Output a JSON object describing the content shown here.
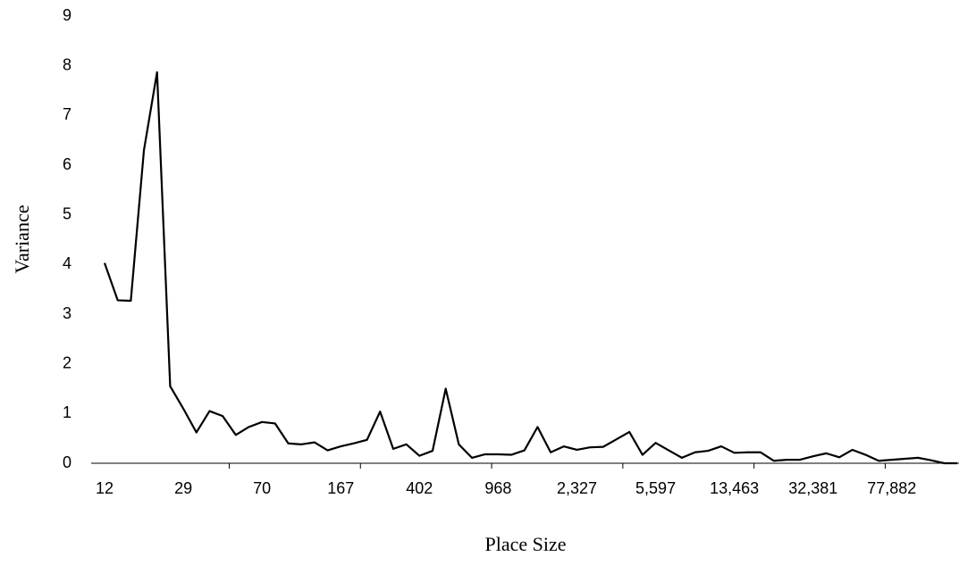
{
  "chart_data": {
    "type": "line",
    "x_label": "Place Size",
    "y_label": "Variance",
    "categories": [
      "12",
      null,
      null,
      null,
      null,
      null,
      "29",
      null,
      null,
      null,
      null,
      null,
      "70",
      null,
      null,
      null,
      null,
      null,
      "167",
      null,
      null,
      null,
      null,
      null,
      "402",
      null,
      null,
      null,
      null,
      null,
      "968",
      null,
      null,
      null,
      null,
      null,
      "2,327",
      null,
      null,
      null,
      null,
      null,
      "5,597",
      null,
      null,
      null,
      null,
      null,
      "13,463",
      null,
      null,
      null,
      null,
      null,
      "32,381",
      null,
      null,
      null,
      null,
      null,
      "77,882",
      null,
      null,
      null,
      null,
      null
    ],
    "values": [
      4.03,
      3.28,
      3.27,
      6.3,
      7.87,
      1.55,
      1.1,
      0.62,
      1.05,
      0.95,
      0.57,
      0.73,
      0.83,
      0.8,
      0.4,
      0.38,
      0.42,
      0.26,
      0.34,
      0.4,
      0.47,
      1.04,
      0.29,
      0.38,
      0.15,
      0.25,
      1.5,
      0.38,
      0.11,
      0.18,
      0.18,
      0.17,
      0.26,
      0.73,
      0.22,
      0.34,
      0.27,
      0.32,
      0.33,
      0.48,
      0.63,
      0.17,
      0.41,
      0.26,
      0.11,
      0.22,
      0.25,
      0.34,
      0.21,
      0.22,
      0.22,
      0.05,
      0.07,
      0.07,
      0.14,
      0.2,
      0.12,
      0.27,
      0.17,
      0.05,
      0.07,
      0.09,
      0.11,
      0.06,
      0,
      0
    ],
    "color": "#000000",
    "ylim": [
      0,
      9
    ],
    "yticks": [
      0,
      1,
      2,
      3,
      4,
      5,
      6,
      7,
      8,
      9
    ],
    "grid": false
  }
}
